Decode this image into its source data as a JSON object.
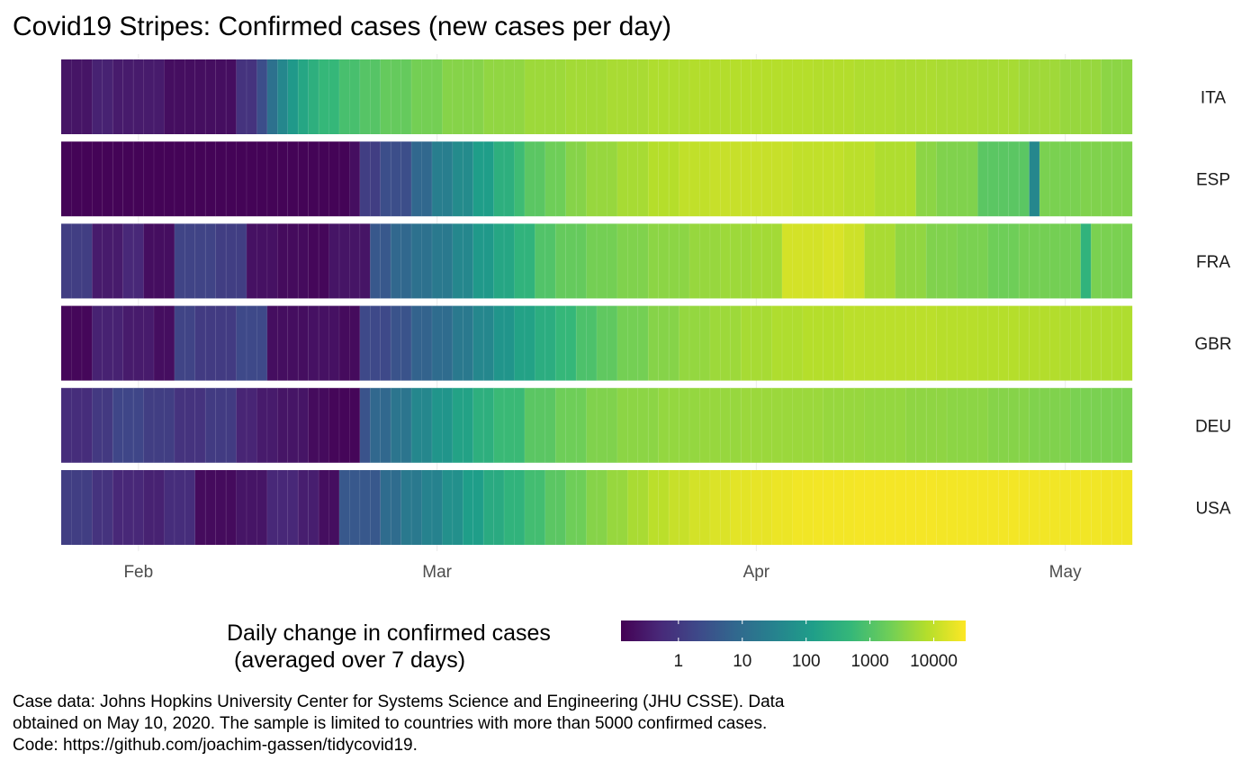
{
  "chart_data": {
    "type": "heatmap",
    "title": "Covid19 Stripes: Confirmed cases (new cases per day)",
    "x_tick_labels": [
      "Feb",
      "Mar",
      "Apr",
      "May"
    ],
    "x_tick_day_index": [
      7,
      36,
      67,
      97
    ],
    "x_range_dates": [
      "2020-01-25",
      "2020-05-06"
    ],
    "value_scale": "log10 of 7-day average daily new cases (approximate, read from color)",
    "legend_title_lines": [
      "Daily change in confirmed cases",
      "(averaged over 7 days)"
    ],
    "legend_tick_labels": [
      "1",
      "10",
      "100",
      "1000",
      "10000"
    ],
    "legend_tick_log": [
      0,
      1,
      2,
      3,
      4
    ],
    "legend_range_log": [
      -0.9,
      4.5
    ],
    "colormap": [
      "#440154",
      "#482878",
      "#3e4989",
      "#31688e",
      "#26828e",
      "#1f9e89",
      "#35b779",
      "#6ece58",
      "#b5de2b",
      "#fde725"
    ],
    "countries": [
      {
        "name": "ITA",
        "segments": [
          [
            2,
            -0.6
          ],
          [
            4,
            -0.4
          ],
          [
            9,
            -0.5
          ],
          [
            16,
            -0.7
          ],
          [
            18,
            -0.1
          ],
          [
            19,
            0.4
          ],
          [
            20,
            1.1
          ],
          [
            21,
            1.6
          ],
          [
            22,
            2.0
          ],
          [
            23,
            2.3
          ],
          [
            24,
            2.5
          ],
          [
            26,
            2.7
          ],
          [
            28,
            2.9
          ],
          [
            30,
            3.05
          ],
          [
            33,
            3.2
          ],
          [
            36,
            3.35
          ],
          [
            40,
            3.5
          ],
          [
            44,
            3.6
          ],
          [
            48,
            3.7
          ],
          [
            52,
            3.75
          ],
          [
            56,
            3.8
          ],
          [
            60,
            3.85
          ],
          [
            64,
            3.88
          ],
          [
            68,
            3.9
          ],
          [
            72,
            3.9
          ],
          [
            76,
            3.88
          ],
          [
            80,
            3.85
          ],
          [
            84,
            3.82
          ],
          [
            88,
            3.8
          ],
          [
            92,
            3.78
          ],
          [
            96,
            3.72
          ],
          [
            100,
            3.65
          ],
          [
            103,
            3.55
          ]
        ]
      },
      {
        "name": "ESP",
        "segments": [
          [
            27,
            -0.85
          ],
          [
            28,
            -0.7
          ],
          [
            30,
            0.1
          ],
          [
            33,
            0.4
          ],
          [
            35,
            0.9
          ],
          [
            37,
            1.4
          ],
          [
            39,
            1.7
          ],
          [
            41,
            2.1
          ],
          [
            43,
            2.5
          ],
          [
            44,
            2.8
          ],
          [
            46,
            3.1
          ],
          [
            48,
            3.3
          ],
          [
            50,
            3.5
          ],
          [
            53,
            3.65
          ],
          [
            56,
            3.78
          ],
          [
            59,
            3.9
          ],
          [
            62,
            4.0
          ],
          [
            66,
            4.05
          ],
          [
            70,
            4.05
          ],
          [
            75,
            4.0
          ],
          [
            78,
            3.95
          ],
          [
            82,
            3.85
          ],
          [
            84,
            3.55
          ],
          [
            88,
            3.45
          ],
          [
            93,
            3.1
          ],
          [
            94,
            1.6
          ],
          [
            98,
            3.4
          ],
          [
            103,
            3.45
          ]
        ]
      },
      {
        "name": "FRA",
        "segments": [
          [
            2,
            0.1
          ],
          [
            5,
            -0.5
          ],
          [
            7,
            -0.3
          ],
          [
            10,
            -0.7
          ],
          [
            14,
            0.2
          ],
          [
            17,
            0.1
          ],
          [
            20,
            -0.65
          ],
          [
            23,
            -0.75
          ],
          [
            25,
            -0.8
          ],
          [
            29,
            -0.6
          ],
          [
            31,
            0.6
          ],
          [
            33,
            0.9
          ],
          [
            35,
            1.1
          ],
          [
            37,
            1.3
          ],
          [
            39,
            1.6
          ],
          [
            41,
            2.0
          ],
          [
            43,
            2.3
          ],
          [
            45,
            2.6
          ],
          [
            47,
            3.0
          ],
          [
            50,
            3.2
          ],
          [
            53,
            3.35
          ],
          [
            56,
            3.45
          ],
          [
            60,
            3.55
          ],
          [
            63,
            3.65
          ],
          [
            66,
            3.7
          ],
          [
            69,
            3.75
          ],
          [
            73,
            4.15
          ],
          [
            75,
            4.2
          ],
          [
            77,
            4.1
          ],
          [
            80,
            3.8
          ],
          [
            83,
            3.6
          ],
          [
            86,
            3.45
          ],
          [
            89,
            3.4
          ],
          [
            92,
            3.3
          ],
          [
            98,
            3.35
          ],
          [
            99,
            2.6
          ],
          [
            103,
            3.4
          ]
        ]
      },
      {
        "name": "GBR",
        "segments": [
          [
            2,
            -0.8
          ],
          [
            5,
            -0.4
          ],
          [
            8,
            -0.5
          ],
          [
            10,
            -0.7
          ],
          [
            12,
            0.2
          ],
          [
            16,
            0.05
          ],
          [
            19,
            0.3
          ],
          [
            23,
            -0.7
          ],
          [
            26,
            -0.65
          ],
          [
            28,
            -0.75
          ],
          [
            31,
            0.3
          ],
          [
            33,
            0.5
          ],
          [
            35,
            0.8
          ],
          [
            37,
            1.0
          ],
          [
            39,
            1.3
          ],
          [
            41,
            1.6
          ],
          [
            43,
            1.9
          ],
          [
            45,
            2.2
          ],
          [
            47,
            2.45
          ],
          [
            49,
            2.7
          ],
          [
            51,
            2.95
          ],
          [
            53,
            3.15
          ],
          [
            56,
            3.35
          ],
          [
            59,
            3.5
          ],
          [
            62,
            3.62
          ],
          [
            65,
            3.7
          ],
          [
            68,
            3.78
          ],
          [
            71,
            3.85
          ],
          [
            75,
            3.9
          ],
          [
            79,
            3.95
          ],
          [
            84,
            3.95
          ],
          [
            88,
            3.92
          ],
          [
            92,
            3.9
          ],
          [
            96,
            3.88
          ],
          [
            103,
            3.85
          ]
        ]
      },
      {
        "name": "DEU",
        "segments": [
          [
            2,
            -0.2
          ],
          [
            4,
            0.0
          ],
          [
            7,
            0.25
          ],
          [
            10,
            0.1
          ],
          [
            13,
            -0.1
          ],
          [
            16,
            0.05
          ],
          [
            18,
            -0.35
          ],
          [
            20,
            -0.5
          ],
          [
            23,
            -0.6
          ],
          [
            25,
            -0.75
          ],
          [
            28,
            -0.82
          ],
          [
            29,
            0.5
          ],
          [
            31,
            0.9
          ],
          [
            33,
            1.2
          ],
          [
            35,
            1.6
          ],
          [
            37,
            1.9
          ],
          [
            39,
            2.2
          ],
          [
            41,
            2.5
          ],
          [
            44,
            2.75
          ],
          [
            47,
            3.1
          ],
          [
            50,
            3.3
          ],
          [
            53,
            3.45
          ],
          [
            57,
            3.55
          ],
          [
            61,
            3.62
          ],
          [
            65,
            3.65
          ],
          [
            69,
            3.68
          ],
          [
            73,
            3.68
          ],
          [
            77,
            3.65
          ],
          [
            81,
            3.62
          ],
          [
            85,
            3.58
          ],
          [
            89,
            3.55
          ],
          [
            93,
            3.5
          ],
          [
            97,
            3.45
          ],
          [
            103,
            3.4
          ]
        ]
      },
      {
        "name": "USA",
        "segments": [
          [
            2,
            0.1
          ],
          [
            4,
            -0.1
          ],
          [
            7,
            -0.3
          ],
          [
            9,
            -0.4
          ],
          [
            12,
            -0.2
          ],
          [
            16,
            -0.75
          ],
          [
            19,
            -0.6
          ],
          [
            22,
            -0.3
          ],
          [
            24,
            -0.45
          ],
          [
            26,
            -0.7
          ],
          [
            30,
            0.6
          ],
          [
            32,
            1.0
          ],
          [
            34,
            1.3
          ],
          [
            36,
            1.5
          ],
          [
            38,
            1.8
          ],
          [
            40,
            2.1
          ],
          [
            42,
            2.4
          ],
          [
            44,
            2.6
          ],
          [
            46,
            2.85
          ],
          [
            48,
            3.1
          ],
          [
            50,
            3.3
          ],
          [
            52,
            3.5
          ],
          [
            54,
            3.65
          ],
          [
            56,
            3.8
          ],
          [
            58,
            3.95
          ],
          [
            60,
            4.05
          ],
          [
            62,
            4.15
          ],
          [
            64,
            4.22
          ],
          [
            66,
            4.28
          ],
          [
            68,
            4.32
          ],
          [
            70,
            4.36
          ],
          [
            72,
            4.4
          ],
          [
            76,
            4.42
          ],
          [
            80,
            4.43
          ],
          [
            84,
            4.43
          ],
          [
            88,
            4.42
          ],
          [
            92,
            4.42
          ],
          [
            96,
            4.41
          ],
          [
            100,
            4.4
          ],
          [
            103,
            4.39
          ]
        ]
      }
    ]
  },
  "caption_lines": [
    "Case data: Johns Hopkins University Center for Systems Science and Engineering (JHU CSSE). Data",
    "obtained on May 10, 2020. The sample is limited to countries with more than 5000 confirmed cases.",
    "Code: https://github.com/joachim-gassen/tidycovid19."
  ]
}
